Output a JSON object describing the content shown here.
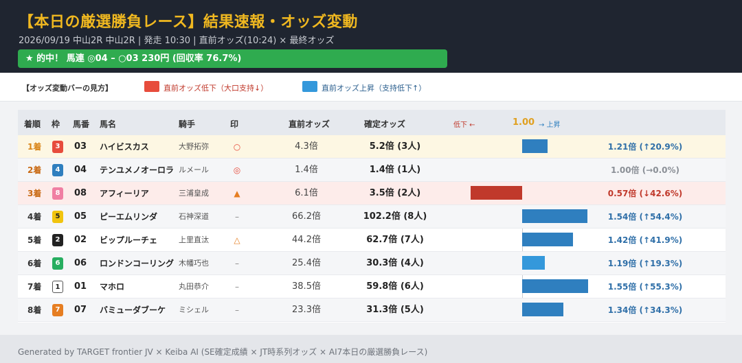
{
  "header": {
    "title": "【本日の厳選勝負レース】結果速報・オッズ変動",
    "subtitle": "2026/09/19 中山2R 中山2R | 発走 10:30 | 直前オッズ(10:24) × 最終オッズ",
    "hit_banner": "★ 的中！ 馬連 ◎04 – ○03 230円 (回収率 76.7%)"
  },
  "legend": {
    "title": "【オッズ変動バーの見方】",
    "down_label": "直前オッズ低下（大口支持↓）",
    "up_label": "直前オッズ上昇（支持低下↑）",
    "down_color": "#e74c3c",
    "up_color": "#3498db"
  },
  "table": {
    "columns": {
      "rank": "着順",
      "frame": "枠",
      "number": "馬番",
      "horse": "馬名",
      "jockey": "騎手",
      "mark": "印",
      "pre_odds": "直前オッズ",
      "final_odds": "確定オッズ",
      "bar_low": "低下 ←",
      "bar_center": "1.00",
      "bar_high": "→ 上昇"
    },
    "rows": [
      {
        "rank": "1着",
        "frame": "3",
        "frame_bg": "#e74c3c",
        "frame_fg": "#ffffff",
        "number": "03",
        "horse": "ハイビスカス",
        "jockey": "大野拓弥",
        "mark": "○",
        "mark_color": "#e74c3c",
        "pre": "4.3倍",
        "fin": "5.2倍 (3人)",
        "ratio": 1.21,
        "pct": "1.21倍 (↑20.9%)",
        "dir": "up",
        "bar_color": "#2f7fbf"
      },
      {
        "rank": "2着",
        "frame": "4",
        "frame_bg": "#2f7fbf",
        "frame_fg": "#ffffff",
        "number": "04",
        "horse": "テンユメノオーロラ",
        "jockey": "ルメール",
        "mark": "◎",
        "mark_color": "#e74c3c",
        "pre": "1.4倍",
        "fin": "1.4倍 (1人)",
        "ratio": 1.0,
        "pct": "1.00倍 (→0.0%)",
        "dir": "flat",
        "bar_color": "#999999"
      },
      {
        "rank": "3着",
        "frame": "8",
        "frame_bg": "#f07fa3",
        "frame_fg": "#ffffff",
        "number": "08",
        "horse": "アフィーリア",
        "jockey": "三浦皇成",
        "mark": "▲",
        "mark_color": "#e67e22",
        "pre": "6.1倍",
        "fin": "3.5倍 (2人)",
        "ratio": 0.57,
        "pct": "0.57倍 (↓42.6%)",
        "dir": "down",
        "bar_color": "#c0392b"
      },
      {
        "rank": "4着",
        "frame": "5",
        "frame_bg": "#f1c40f",
        "frame_fg": "#222222",
        "number": "05",
        "horse": "ピーエムリンダ",
        "jockey": "石神深道",
        "mark": "–",
        "mark_color": "#888888",
        "pre": "66.2倍",
        "fin": "102.2倍 (8人)",
        "ratio": 1.54,
        "pct": "1.54倍 (↑54.4%)",
        "dir": "up",
        "bar_color": "#2f7fbf"
      },
      {
        "rank": "5着",
        "frame": "2",
        "frame_bg": "#222222",
        "frame_fg": "#ffffff",
        "number": "02",
        "horse": "ビップルーチェ",
        "jockey": "上里直汰",
        "mark": "△",
        "mark_color": "#e67e22",
        "pre": "44.2倍",
        "fin": "62.7倍 (7人)",
        "ratio": 1.42,
        "pct": "1.42倍 (↑41.9%)",
        "dir": "up",
        "bar_color": "#2f7fbf"
      },
      {
        "rank": "6着",
        "frame": "6",
        "frame_bg": "#27ae60",
        "frame_fg": "#ffffff",
        "number": "06",
        "horse": "ロンドンコーリング",
        "jockey": "木幡巧也",
        "mark": "–",
        "mark_color": "#888888",
        "pre": "25.4倍",
        "fin": "30.3倍 (4人)",
        "ratio": 1.19,
        "pct": "1.19倍 (↑19.3%)",
        "dir": "up",
        "bar_color": "#3498db"
      },
      {
        "rank": "7着",
        "frame": "1",
        "frame_bg": "#ffffff",
        "frame_fg": "#222222",
        "number": "01",
        "horse": "マホロ",
        "jockey": "丸田恭介",
        "mark": "–",
        "mark_color": "#888888",
        "pre": "38.5倍",
        "fin": "59.8倍 (6人)",
        "ratio": 1.55,
        "pct": "1.55倍 (↑55.3%)",
        "dir": "up",
        "bar_color": "#2f7fbf"
      },
      {
        "rank": "8着",
        "frame": "7",
        "frame_bg": "#e67e22",
        "frame_fg": "#ffffff",
        "number": "07",
        "horse": "バミューダブーケ",
        "jockey": "ミシェル",
        "mark": "–",
        "mark_color": "#888888",
        "pre": "23.3倍",
        "fin": "31.3倍 (5人)",
        "ratio": 1.34,
        "pct": "1.34倍 (↑34.3%)",
        "dir": "up",
        "bar_color": "#2f7fbf"
      }
    ]
  },
  "footer": {
    "text": "Generated by TARGET frontier JV × Keiba AI (SE確定成績 × JT時系列オッズ × AI7本日の厳選勝負レース)"
  }
}
